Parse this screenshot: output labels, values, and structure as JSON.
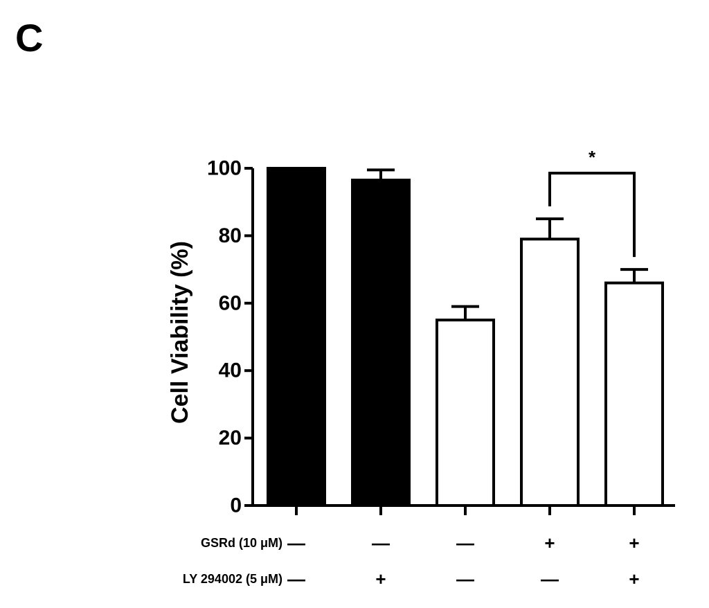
{
  "panel_label": "C",
  "chart_data": {
    "type": "bar",
    "title": "",
    "xlabel": "",
    "ylabel": "Cell Viability (%)",
    "ylim": [
      0,
      100
    ],
    "yticks": [
      0,
      20,
      40,
      60,
      80,
      100
    ],
    "grid": false,
    "groups": 5,
    "values": [
      100,
      96.5,
      55,
      79,
      66
    ],
    "errors": [
      0,
      3,
      4,
      6,
      4
    ],
    "fill": [
      "black",
      "black",
      "white",
      "white",
      "white"
    ],
    "colors": {
      "black": "#000000",
      "white": "#ffffff"
    },
    "condition_rows": [
      {
        "label": "GSRd (10 μM)",
        "signs": [
          "—",
          "—",
          "—",
          "+",
          "+"
        ]
      },
      {
        "label": "LY 294002 (5 μM)",
        "signs": [
          "—",
          "+",
          "—",
          "—",
          "+"
        ]
      }
    ],
    "annotations": [
      {
        "text": "*",
        "between": [
          3,
          4
        ]
      }
    ]
  }
}
